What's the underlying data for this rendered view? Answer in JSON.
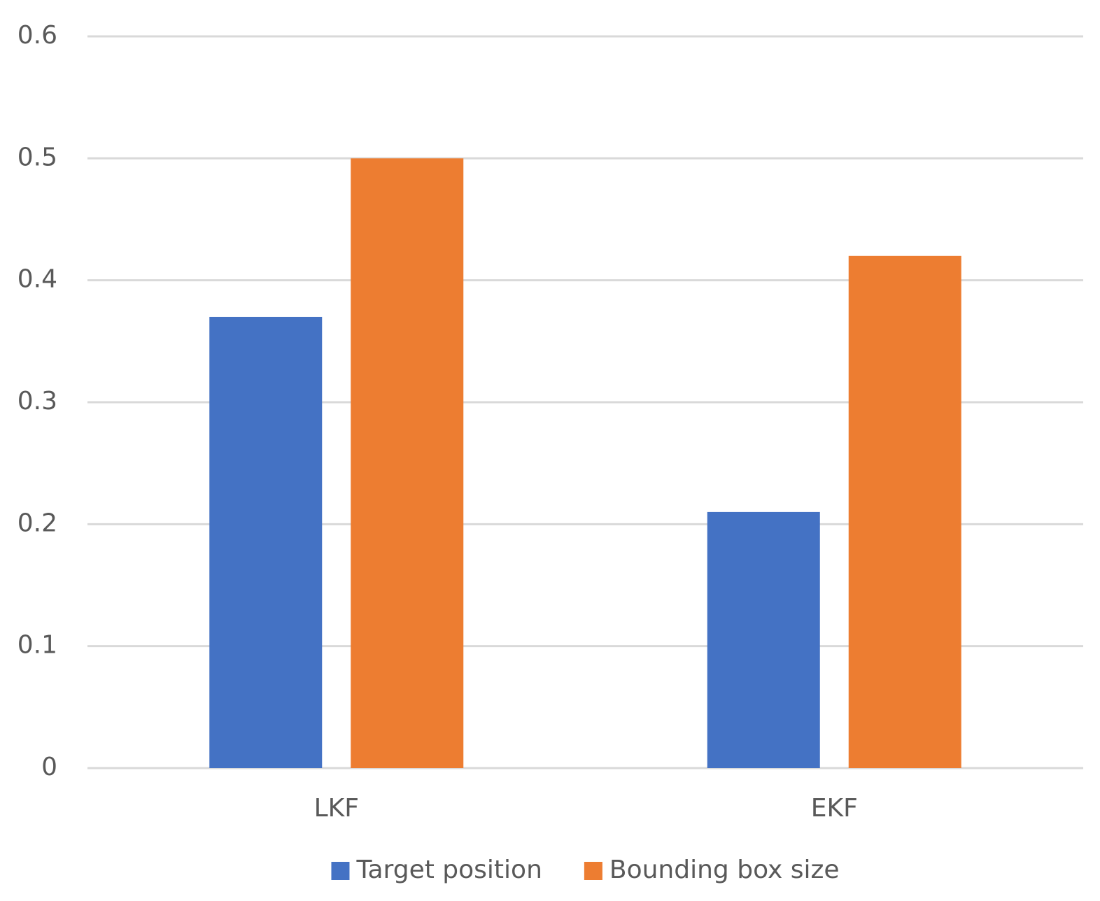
{
  "chart_data": {
    "type": "bar",
    "categories": [
      "LKF",
      "EKF"
    ],
    "series": [
      {
        "name": "Target position",
        "color": "#4472c4",
        "values": [
          0.37,
          0.21
        ]
      },
      {
        "name": "Bounding box size",
        "color": "#ed7d31",
        "values": [
          0.5,
          0.42
        ]
      }
    ],
    "ylim": [
      0,
      0.6
    ],
    "yticks": [
      0,
      0.1,
      0.2,
      0.3,
      0.4,
      0.5,
      0.6
    ],
    "grid": true,
    "legend": "bottom"
  }
}
